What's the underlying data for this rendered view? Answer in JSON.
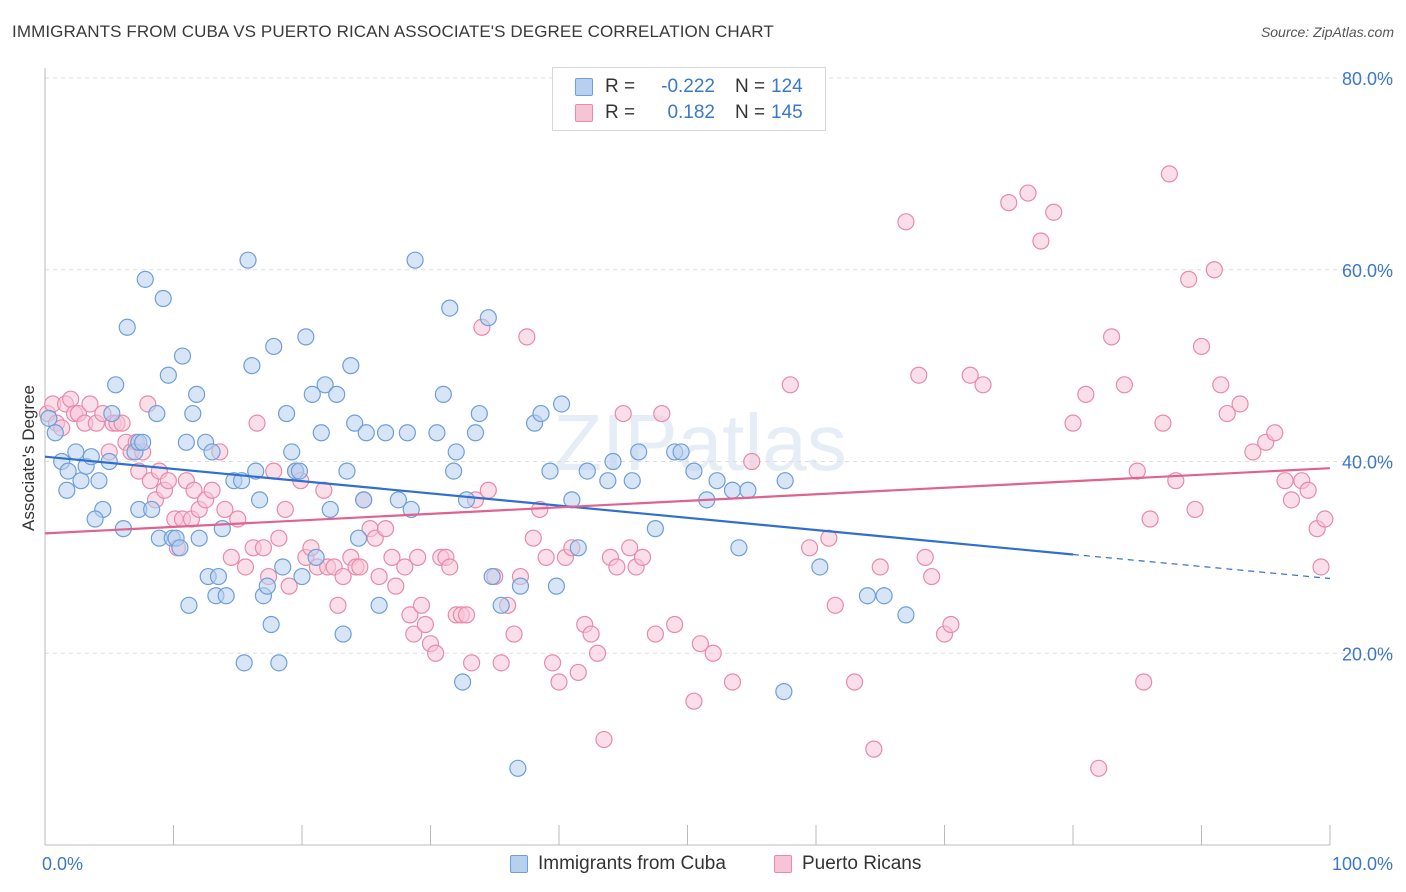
{
  "title": "IMMIGRANTS FROM CUBA VS PUERTO RICAN ASSOCIATE'S DEGREE CORRELATION CHART",
  "source": "Source: ZipAtlas.com",
  "watermark": "ZIPatlas",
  "legend": {
    "rows": [
      {
        "r_label": "R =",
        "r_value": "-0.222",
        "n_label": "N =",
        "n_value": "124"
      },
      {
        "r_label": "R =",
        "r_value": "0.182",
        "n_label": "N =",
        "n_value": "145"
      }
    ]
  },
  "bottom_legend": [
    "Immigrants from Cuba",
    "Puerto Ricans"
  ],
  "colors": {
    "blue_fill": "#b7d0f0",
    "blue_stroke": "#6f9fd8",
    "blue_line": "#2f6fd0",
    "pink_fill": "#f7c4d6",
    "pink_stroke": "#e88aaa",
    "pink_line": "#e0628f",
    "tick_label": "#3b78c8",
    "grid": "#dddddd"
  },
  "chart_data": {
    "type": "scatter",
    "title": "IMMIGRANTS FROM CUBA VS PUERTO RICAN ASSOCIATE'S DEGREE CORRELATION CHART",
    "xlabel": "",
    "ylabel": "Associate's Degree",
    "xlim": [
      0,
      100
    ],
    "ylim": [
      0,
      80
    ],
    "x_tick_labels": [
      "0.0%",
      "100.0%"
    ],
    "y_ticks": [
      20,
      40,
      60,
      80
    ],
    "y_tick_labels": [
      "20.0%",
      "40.0%",
      "60.0%",
      "80.0%"
    ],
    "grid": true,
    "series": [
      {
        "name": "Immigrants from Cuba",
        "r": -0.222,
        "n": 124,
        "trend": {
          "x0": 0,
          "y0": 40.5,
          "x1": 80,
          "y1": 30.3,
          "dash_to_x": 100,
          "dash_to_y": 27.8
        },
        "points": [
          [
            0.3,
            44.5
          ],
          [
            0.8,
            43
          ],
          [
            1.3,
            40
          ],
          [
            1.8,
            39
          ],
          [
            2.4,
            41
          ],
          [
            2.8,
            38
          ],
          [
            3.2,
            39.5
          ],
          [
            3.6,
            40.5
          ],
          [
            4.2,
            38
          ],
          [
            4.5,
            35
          ],
          [
            3.9,
            34
          ],
          [
            1.7,
            37
          ],
          [
            5.0,
            40
          ],
          [
            5.2,
            45
          ],
          [
            5.5,
            48
          ],
          [
            6.1,
            33
          ],
          [
            6.4,
            54
          ],
          [
            7,
            41
          ],
          [
            7.3,
            42
          ],
          [
            7.6,
            42
          ],
          [
            7.3,
            35
          ],
          [
            7.8,
            59
          ],
          [
            8.3,
            35
          ],
          [
            8.7,
            45
          ],
          [
            8.9,
            32
          ],
          [
            9.2,
            57
          ],
          [
            9.6,
            49
          ],
          [
            9.9,
            32
          ],
          [
            10.2,
            32
          ],
          [
            10.5,
            31
          ],
          [
            10.7,
            51
          ],
          [
            11,
            42
          ],
          [
            11.2,
            25
          ],
          [
            11.5,
            45
          ],
          [
            11.8,
            47
          ],
          [
            12,
            32
          ],
          [
            12.5,
            42
          ],
          [
            12.7,
            28
          ],
          [
            13,
            41
          ],
          [
            13.3,
            26
          ],
          [
            13.5,
            28
          ],
          [
            13.8,
            33
          ],
          [
            14.1,
            26
          ],
          [
            14.7,
            38
          ],
          [
            15.3,
            38
          ],
          [
            15.5,
            19
          ],
          [
            15.8,
            61
          ],
          [
            16.1,
            50
          ],
          [
            16.4,
            39
          ],
          [
            16.7,
            36
          ],
          [
            17,
            26
          ],
          [
            17.3,
            27
          ],
          [
            17.6,
            23
          ],
          [
            17.8,
            52
          ],
          [
            18.2,
            19
          ],
          [
            18.5,
            29
          ],
          [
            18.8,
            45
          ],
          [
            19.2,
            41
          ],
          [
            19.5,
            39
          ],
          [
            19.8,
            39
          ],
          [
            20,
            28
          ],
          [
            20.3,
            53
          ],
          [
            20.8,
            47
          ],
          [
            21.1,
            30
          ],
          [
            21.5,
            43
          ],
          [
            21.8,
            48
          ],
          [
            22.2,
            35
          ],
          [
            22.7,
            47
          ],
          [
            23.2,
            22
          ],
          [
            23.5,
            39
          ],
          [
            23.8,
            50
          ],
          [
            24.1,
            44
          ],
          [
            24.4,
            32
          ],
          [
            24.8,
            36
          ],
          [
            25,
            43
          ],
          [
            26,
            25
          ],
          [
            26.5,
            43
          ],
          [
            27.5,
            36
          ],
          [
            28.2,
            43
          ],
          [
            28.8,
            61
          ],
          [
            28.5,
            35
          ],
          [
            30.5,
            43
          ],
          [
            31,
            47
          ],
          [
            31.5,
            56
          ],
          [
            31.8,
            39
          ],
          [
            32,
            41
          ],
          [
            32.8,
            36
          ],
          [
            32.5,
            17
          ],
          [
            33.5,
            43
          ],
          [
            33.8,
            45
          ],
          [
            34.5,
            55
          ],
          [
            34.8,
            28
          ],
          [
            35.5,
            25
          ],
          [
            36.8,
            8
          ],
          [
            37,
            27
          ],
          [
            38.1,
            44
          ],
          [
            38.6,
            45
          ],
          [
            39.3,
            39
          ],
          [
            39.8,
            27
          ],
          [
            40.2,
            46
          ],
          [
            41,
            36
          ],
          [
            41.5,
            31
          ],
          [
            42.2,
            39
          ],
          [
            43.8,
            38
          ],
          [
            44.2,
            40
          ],
          [
            45.7,
            38
          ],
          [
            46.2,
            41
          ],
          [
            47.5,
            33
          ],
          [
            49,
            41
          ],
          [
            49.5,
            41
          ],
          [
            50.5,
            39
          ],
          [
            51.5,
            36
          ],
          [
            52.3,
            38
          ],
          [
            53.5,
            37
          ],
          [
            54,
            31
          ],
          [
            54.7,
            37
          ],
          [
            57.5,
            16
          ],
          [
            57.6,
            38
          ],
          [
            60.3,
            29
          ],
          [
            64,
            26
          ],
          [
            65.3,
            26
          ],
          [
            67,
            24
          ]
        ]
      },
      {
        "name": "Puerto Ricans",
        "r": 0.182,
        "n": 145,
        "trend": {
          "x0": 0,
          "y0": 32.5,
          "x1": 100,
          "y1": 39.3
        },
        "points": [
          [
            0.2,
            45
          ],
          [
            0.6,
            46
          ],
          [
            0.9,
            44
          ],
          [
            1.3,
            43.5
          ],
          [
            1.6,
            46
          ],
          [
            2,
            46.5
          ],
          [
            2.3,
            45
          ],
          [
            2.6,
            45
          ],
          [
            3.1,
            44
          ],
          [
            3.5,
            46
          ],
          [
            4,
            44
          ],
          [
            4.5,
            45
          ],
          [
            5,
            41
          ],
          [
            5.3,
            44
          ],
          [
            5.6,
            44
          ],
          [
            6,
            44
          ],
          [
            6.3,
            42
          ],
          [
            6.7,
            41
          ],
          [
            7.1,
            42
          ],
          [
            7.3,
            39
          ],
          [
            7.6,
            41
          ],
          [
            8,
            46
          ],
          [
            8.2,
            38
          ],
          [
            8.6,
            36
          ],
          [
            8.9,
            39
          ],
          [
            9.3,
            37
          ],
          [
            9.6,
            38
          ],
          [
            10.1,
            34
          ],
          [
            10.3,
            31
          ],
          [
            10.7,
            34
          ],
          [
            11,
            38
          ],
          [
            11.4,
            34
          ],
          [
            11.6,
            37
          ],
          [
            12,
            35
          ],
          [
            12.5,
            36
          ],
          [
            13,
            37
          ],
          [
            13.6,
            41
          ],
          [
            14,
            35
          ],
          [
            14.5,
            30
          ],
          [
            15,
            34
          ],
          [
            15.6,
            29
          ],
          [
            16.2,
            31
          ],
          [
            16.5,
            44
          ],
          [
            17,
            31
          ],
          [
            17.4,
            28
          ],
          [
            17.8,
            39
          ],
          [
            18.2,
            32
          ],
          [
            18.7,
            35
          ],
          [
            19,
            27
          ],
          [
            19.5,
            39
          ],
          [
            19.9,
            38
          ],
          [
            20.3,
            30
          ],
          [
            20.7,
            31
          ],
          [
            21.2,
            29
          ],
          [
            21.7,
            37
          ],
          [
            22,
            29
          ],
          [
            22.5,
            29
          ],
          [
            22.8,
            25
          ],
          [
            23.2,
            28
          ],
          [
            23.8,
            30
          ],
          [
            24.2,
            29
          ],
          [
            24.5,
            29
          ],
          [
            24.8,
            36
          ],
          [
            25.3,
            33
          ],
          [
            25.7,
            32
          ],
          [
            26,
            28
          ],
          [
            26.5,
            33
          ],
          [
            27,
            30
          ],
          [
            27.3,
            27
          ],
          [
            28,
            29
          ],
          [
            28.4,
            24
          ],
          [
            28.7,
            22
          ],
          [
            29,
            30
          ],
          [
            29.3,
            25
          ],
          [
            29.6,
            23
          ],
          [
            30,
            21
          ],
          [
            30.4,
            20
          ],
          [
            30.8,
            30
          ],
          [
            31.2,
            30
          ],
          [
            31.5,
            29
          ],
          [
            32,
            24
          ],
          [
            32.4,
            24
          ],
          [
            32.8,
            24
          ],
          [
            33.2,
            19
          ],
          [
            33.5,
            36
          ],
          [
            34,
            54
          ],
          [
            34.5,
            37
          ],
          [
            35,
            28
          ],
          [
            35.5,
            19
          ],
          [
            36,
            25
          ],
          [
            36.5,
            22
          ],
          [
            37,
            28
          ],
          [
            37.5,
            53
          ],
          [
            38,
            32
          ],
          [
            38.5,
            35
          ],
          [
            39,
            30
          ],
          [
            39.5,
            19
          ],
          [
            40,
            17
          ],
          [
            40.5,
            30
          ],
          [
            41,
            31
          ],
          [
            41.5,
            18
          ],
          [
            42,
            23
          ],
          [
            42.5,
            22
          ],
          [
            43,
            20
          ],
          [
            43.5,
            11
          ],
          [
            44,
            30
          ],
          [
            44.5,
            29
          ],
          [
            45,
            45
          ],
          [
            45.5,
            31
          ],
          [
            46,
            29
          ],
          [
            46.5,
            30
          ],
          [
            47.5,
            22
          ],
          [
            48,
            45
          ],
          [
            49,
            23
          ],
          [
            50.5,
            15
          ],
          [
            51,
            21
          ],
          [
            52,
            20
          ],
          [
            53.5,
            17
          ],
          [
            55,
            40
          ],
          [
            58,
            48
          ],
          [
            59.5,
            31
          ],
          [
            61,
            32
          ],
          [
            61.5,
            25
          ],
          [
            63,
            17
          ],
          [
            64.5,
            10
          ],
          [
            65,
            29
          ],
          [
            67,
            65
          ],
          [
            68,
            49
          ],
          [
            68.5,
            30
          ],
          [
            69,
            28
          ],
          [
            70,
            22
          ],
          [
            70.5,
            23
          ],
          [
            72,
            49
          ],
          [
            73,
            48
          ],
          [
            75,
            67
          ],
          [
            76.5,
            68
          ],
          [
            77.5,
            63
          ],
          [
            78.5,
            66
          ],
          [
            80,
            44
          ],
          [
            81,
            47
          ],
          [
            82,
            8
          ],
          [
            83,
            53
          ],
          [
            84,
            48
          ],
          [
            85,
            39
          ],
          [
            85.5,
            17
          ],
          [
            86,
            34
          ],
          [
            87.5,
            70
          ],
          [
            87,
            44
          ],
          [
            88,
            38
          ],
          [
            89,
            59
          ],
          [
            89.5,
            35
          ],
          [
            90,
            52
          ],
          [
            91,
            60
          ],
          [
            91.5,
            48
          ],
          [
            92,
            45
          ],
          [
            93,
            46
          ],
          [
            94,
            41
          ],
          [
            95,
            42
          ],
          [
            95.7,
            43
          ],
          [
            96.5,
            38
          ],
          [
            97,
            36
          ],
          [
            97.8,
            38
          ],
          [
            98.3,
            37
          ],
          [
            99,
            33
          ],
          [
            99.3,
            29
          ],
          [
            99.6,
            34
          ]
        ]
      }
    ]
  }
}
